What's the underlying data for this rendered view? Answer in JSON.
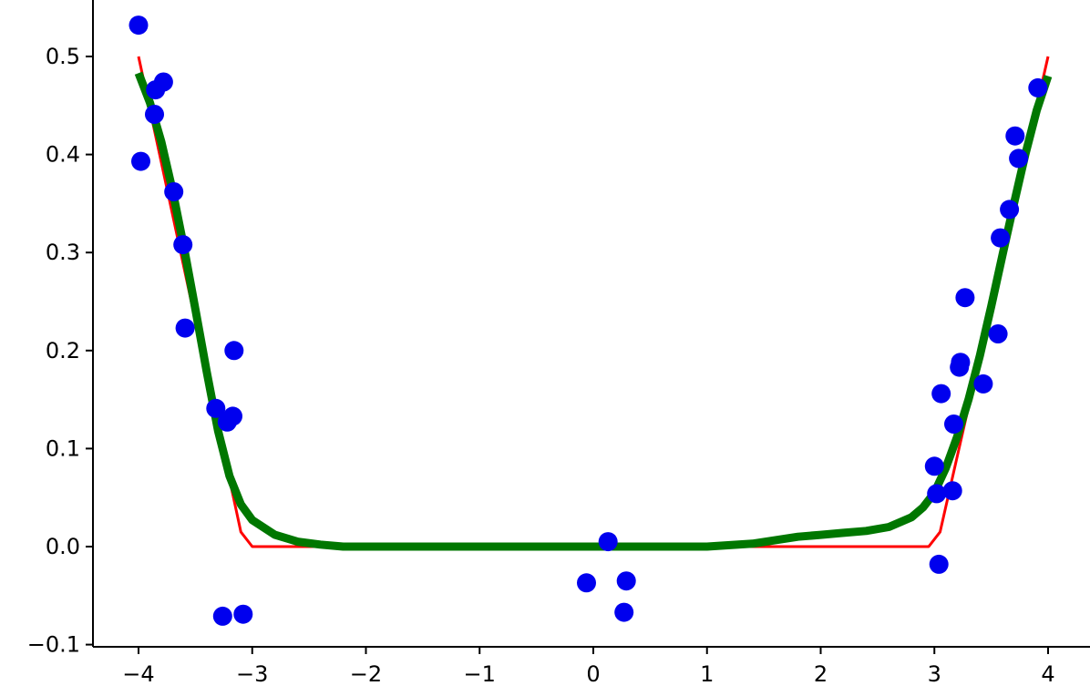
{
  "chart_data": {
    "type": "scatter",
    "title": "",
    "xlabel": "",
    "ylabel": "",
    "xlim": [
      -4.2,
      4.2
    ],
    "ylim": [
      -0.105,
      0.56
    ],
    "grid": false,
    "x_ticks": [
      -4,
      -3,
      -2,
      -1,
      0,
      1,
      2,
      3,
      4
    ],
    "x_tick_labels": [
      "−4",
      "−3",
      "−2",
      "−1",
      "0",
      "1",
      "2",
      "3",
      "4"
    ],
    "y_ticks": [
      -0.1,
      0.0,
      0.1,
      0.2,
      0.3,
      0.4,
      0.5
    ],
    "y_tick_labels": [
      "−0.1",
      "0.0",
      "0.1",
      "0.2",
      "0.3",
      "0.4",
      "0.5"
    ],
    "points": {
      "color": "#0000ee",
      "x": [
        -4.0,
        -3.98,
        -3.85,
        -3.86,
        -3.78,
        -3.69,
        -3.61,
        -3.59,
        -3.32,
        -3.26,
        -3.22,
        -3.17,
        -3.16,
        -3.08,
        -0.06,
        0.13,
        0.27,
        0.29,
        3.0,
        3.02,
        3.04,
        3.06,
        3.16,
        3.17,
        3.22,
        3.23,
        3.27,
        3.43,
        3.56,
        3.58,
        3.66,
        3.71,
        3.74,
        3.91
      ],
      "y": [
        0.532,
        0.393,
        0.466,
        0.441,
        0.474,
        0.362,
        0.308,
        0.223,
        0.141,
        -0.071,
        0.127,
        0.133,
        0.2,
        -0.069,
        -0.037,
        0.005,
        -0.067,
        -0.035,
        0.082,
        0.054,
        -0.018,
        0.156,
        0.057,
        0.125,
        0.183,
        0.188,
        0.254,
        0.166,
        0.217,
        0.315,
        0.344,
        0.419,
        0.396,
        0.468
      ]
    },
    "series": [
      {
        "color": "#ff0000",
        "x": [
          -4.0,
          -3.1,
          -3.0,
          2.95,
          3.05,
          4.0
        ],
        "y": [
          0.5,
          0.015,
          0.0,
          0.0,
          0.015,
          0.5
        ]
      },
      {
        "color": "#007700",
        "x": [
          -4.0,
          -3.9,
          -3.8,
          -3.7,
          -3.6,
          -3.5,
          -3.4,
          -3.3,
          -3.2,
          -3.1,
          -3.0,
          -2.8,
          -2.6,
          -2.4,
          -2.2,
          -2.0,
          -1.5,
          -1.0,
          0.0,
          1.0,
          1.4,
          1.8,
          2.0,
          2.2,
          2.4,
          2.6,
          2.8,
          2.9,
          3.0,
          3.1,
          3.2,
          3.3,
          3.4,
          3.5,
          3.6,
          3.7,
          3.8,
          3.9,
          4.0
        ],
        "y": [
          0.483,
          0.453,
          0.413,
          0.363,
          0.305,
          0.242,
          0.178,
          0.118,
          0.072,
          0.043,
          0.027,
          0.012,
          0.005,
          0.002,
          0.0,
          0.0,
          0.0,
          0.0,
          0.0,
          0.0,
          0.003,
          0.01,
          0.012,
          0.014,
          0.016,
          0.02,
          0.03,
          0.04,
          0.055,
          0.08,
          0.112,
          0.15,
          0.195,
          0.245,
          0.298,
          0.35,
          0.4,
          0.445,
          0.48
        ]
      }
    ]
  }
}
